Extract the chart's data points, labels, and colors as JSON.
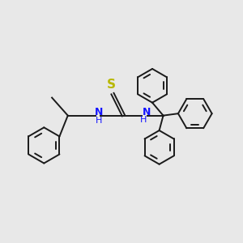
{
  "bg_color": "#e8e8e8",
  "bond_color": "#1a1a1a",
  "n_color": "#1414ff",
  "s_color": "#b8b800",
  "line_width": 1.4,
  "figsize": [
    3.0,
    3.0
  ],
  "dpi": 100,
  "xlim": [
    0,
    12
  ],
  "ylim": [
    0,
    10
  ]
}
